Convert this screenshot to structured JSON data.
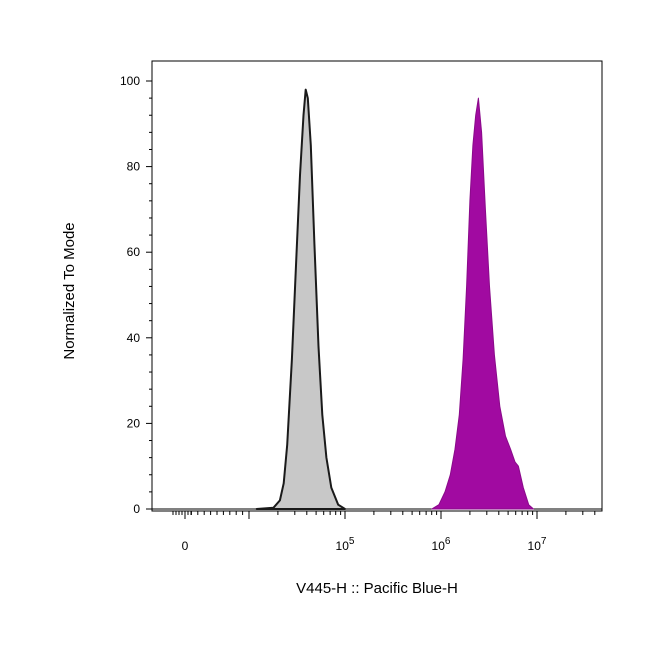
{
  "chart_data": {
    "type": "area",
    "title": "",
    "xlabel": "V445-H :: Pacific Blue-H",
    "ylabel": "Normalized To Mode",
    "x_scale": "biexponential",
    "ylim": [
      0,
      100
    ],
    "y_ticks": [
      {
        "value": 0,
        "label": "0"
      },
      {
        "value": 20,
        "label": "20"
      },
      {
        "value": 40,
        "label": "40"
      },
      {
        "value": 60,
        "label": "60"
      },
      {
        "value": 80,
        "label": "80"
      },
      {
        "value": 100,
        "label": "100"
      }
    ],
    "x_ticks": [
      {
        "value": 0,
        "base": "0",
        "exp": ""
      },
      {
        "value": 100000,
        "base": "10",
        "exp": "5"
      },
      {
        "value": 1000000,
        "base": "10",
        "exp": "6"
      },
      {
        "value": 10000000,
        "base": "10",
        "exp": "7"
      }
    ],
    "grid": false,
    "series": [
      {
        "fill": "#c8c8c8",
        "stroke": "#1a1a1a",
        "x": [
          12000,
          18000,
          21000,
          23000,
          25000,
          28000,
          31000,
          34000,
          37000,
          39000,
          41000,
          44000,
          48000,
          53000,
          58000,
          64000,
          72000,
          85000,
          100000
        ],
        "y": [
          0,
          0.3,
          2,
          6,
          15,
          35,
          58,
          78,
          92,
          98,
          96,
          85,
          62,
          38,
          22,
          12,
          5,
          1,
          0
        ]
      },
      {
        "fill": "#a10aa1",
        "stroke": "#8a0a8a",
        "x": [
          800000,
          950000,
          1100000,
          1250000,
          1400000,
          1550000,
          1700000,
          1850000,
          2000000,
          2150000,
          2300000,
          2450000,
          2650000,
          2900000,
          3200000,
          3600000,
          4100000,
          4700000,
          5300000,
          5900000,
          6400000,
          7200000,
          8200000,
          9200000
        ],
        "y": [
          0,
          1,
          4,
          8,
          14,
          22,
          35,
          52,
          72,
          85,
          92,
          96,
          88,
          70,
          52,
          36,
          24,
          17,
          14,
          11,
          10,
          5,
          1,
          0
        ]
      }
    ]
  }
}
